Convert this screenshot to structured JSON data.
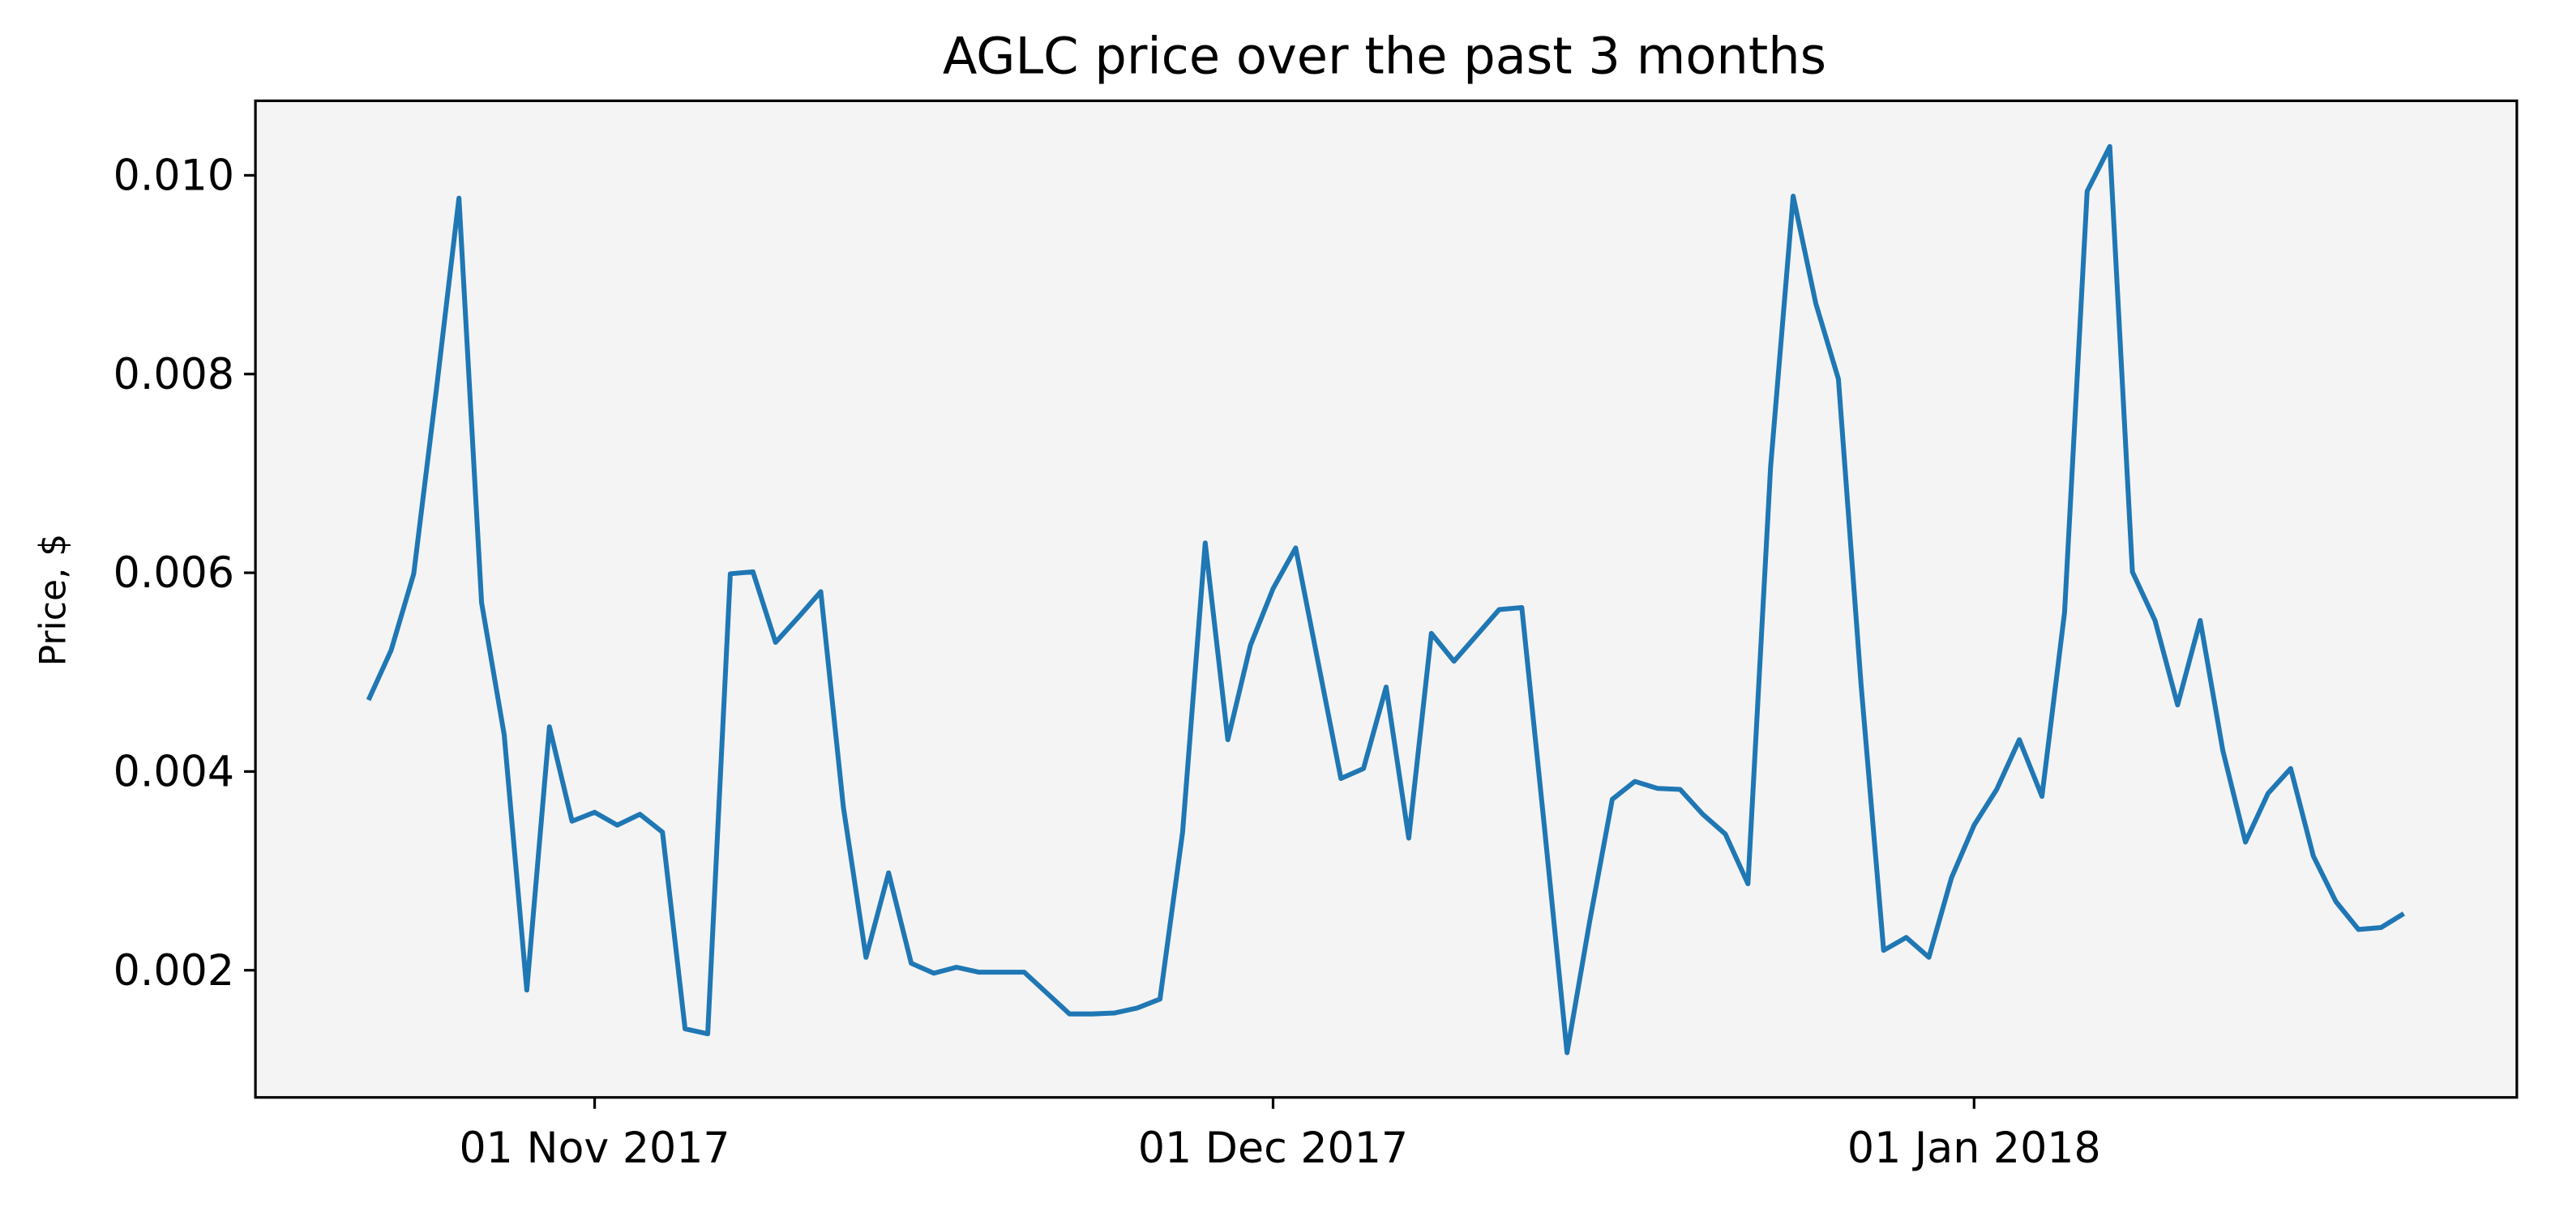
{
  "chart_data": {
    "type": "line",
    "title": "AGLC price over the past 3 months",
    "y_label": "Price, $",
    "x": [
      "2017-10-22",
      "2017-10-23",
      "2017-10-24",
      "2017-10-25",
      "2017-10-26",
      "2017-10-27",
      "2017-10-28",
      "2017-10-29",
      "2017-10-30",
      "2017-10-31",
      "2017-11-01",
      "2017-11-02",
      "2017-11-03",
      "2017-11-04",
      "2017-11-05",
      "2017-11-06",
      "2017-11-07",
      "2017-11-08",
      "2017-11-09",
      "2017-11-10",
      "2017-11-11",
      "2017-11-12",
      "2017-11-13",
      "2017-11-14",
      "2017-11-15",
      "2017-11-16",
      "2017-11-17",
      "2017-11-18",
      "2017-11-19",
      "2017-11-20",
      "2017-11-21",
      "2017-11-22",
      "2017-11-23",
      "2017-11-24",
      "2017-11-25",
      "2017-11-26",
      "2017-11-27",
      "2017-11-28",
      "2017-11-29",
      "2017-11-30",
      "2017-12-01",
      "2017-12-02",
      "2017-12-03",
      "2017-12-04",
      "2017-12-05",
      "2017-12-06",
      "2017-12-07",
      "2017-12-08",
      "2017-12-09",
      "2017-12-10",
      "2017-12-11",
      "2017-12-12",
      "2017-12-13",
      "2017-12-14",
      "2017-12-15",
      "2017-12-16",
      "2017-12-17",
      "2017-12-18",
      "2017-12-19",
      "2017-12-20",
      "2017-12-21",
      "2017-12-22",
      "2017-12-23",
      "2017-12-24",
      "2017-12-25",
      "2017-12-26",
      "2017-12-27",
      "2017-12-28",
      "2017-12-29",
      "2017-12-30",
      "2017-12-31",
      "2018-01-01",
      "2018-01-02",
      "2018-01-03",
      "2018-01-04",
      "2018-01-05",
      "2018-01-06",
      "2018-01-07",
      "2018-01-08",
      "2018-01-09",
      "2018-01-10",
      "2018-01-11",
      "2018-01-12",
      "2018-01-13",
      "2018-01-14",
      "2018-01-15",
      "2018-01-16",
      "2018-01-17",
      "2018-01-18",
      "2018-01-19",
      "2018-01-20"
    ],
    "series": [
      {
        "color": "#1f77b4",
        "values": [
          0.00472,
          0.00522,
          0.00599,
          0.00784,
          0.00977,
          0.0057,
          0.00437,
          0.0018,
          0.00445,
          0.0035,
          0.00359,
          0.00346,
          0.00357,
          0.00339,
          0.00141,
          0.00136,
          0.00599,
          0.00601,
          0.0053,
          0.00555,
          0.00581,
          0.00364,
          0.00213,
          0.00298,
          0.00207,
          0.00197,
          0.00203,
          0.00198,
          0.00198,
          0.00198,
          0.00177,
          0.00156,
          0.00156,
          0.00157,
          0.00162,
          0.00171,
          0.00339,
          0.0063,
          0.00432,
          0.00527,
          0.00584,
          0.00625,
          0.00509,
          0.00393,
          0.00403,
          0.00485,
          0.00333,
          0.00539,
          0.00511,
          0.00537,
          0.00563,
          0.00565,
          0.00344,
          0.00117,
          0.00249,
          0.00372,
          0.0039,
          0.00383,
          0.00382,
          0.00357,
          0.00337,
          0.00287,
          0.00706,
          0.00979,
          0.00871,
          0.00795,
          0.00488,
          0.0022,
          0.00233,
          0.00213,
          0.00293,
          0.00346,
          0.00382,
          0.00432,
          0.00375,
          0.0056,
          0.00984,
          0.01029,
          0.00601,
          0.00552,
          0.00467,
          0.00552,
          0.00421,
          0.00329,
          0.00378,
          0.00403,
          0.00315,
          0.00269,
          0.00241,
          0.00243,
          0.00257
        ]
      }
    ],
    "xlim": [
      "2017-10-17",
      "2018-01-25"
    ],
    "xticks": [
      {
        "value": "2017-11-01",
        "label": "01 Nov 2017"
      },
      {
        "value": "2017-12-01",
        "label": "01 Dec 2017"
      },
      {
        "value": "2018-01-01",
        "label": "01 Jan 2018"
      }
    ],
    "ylim": [
      0.00072,
      0.01075
    ],
    "yticks": [
      0.002,
      0.004,
      0.006,
      0.008,
      {
        "value": 0.01,
        "label": "0.010"
      }
    ],
    "background": "#f4f4f4"
  }
}
